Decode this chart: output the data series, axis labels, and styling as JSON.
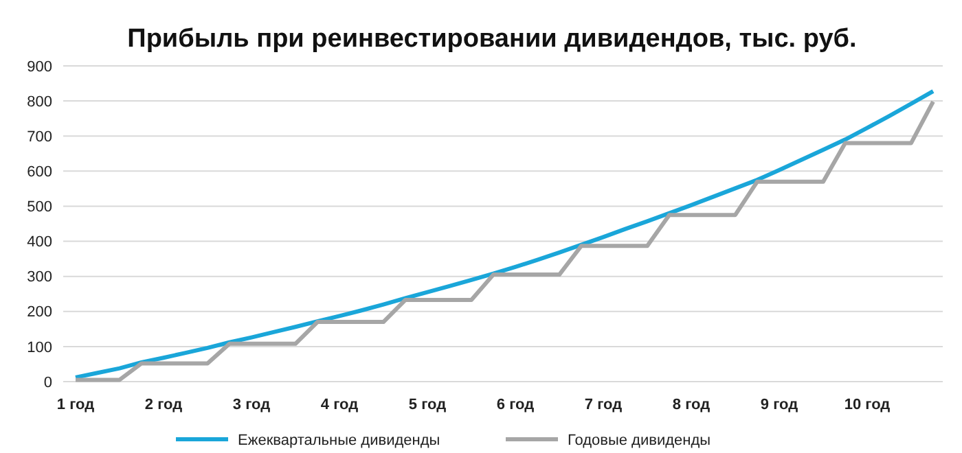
{
  "chart_data": {
    "type": "line",
    "title": "Прибыль при реинвестировании дивидендов, тыс. руб.",
    "categories": [
      "1 год",
      null,
      null,
      null,
      "2 год",
      null,
      null,
      null,
      "3 год",
      null,
      null,
      null,
      "4 год",
      null,
      null,
      null,
      "5 год",
      null,
      null,
      null,
      "6 год",
      null,
      null,
      null,
      "7 год",
      null,
      null,
      null,
      "8 год",
      null,
      null,
      null,
      "9 год",
      null,
      null,
      null,
      "10 год",
      null,
      null,
      null
    ],
    "series": [
      {
        "name": "Ежеквартальные дивиденды",
        "color": "#1aa6d9",
        "values": [
          12,
          25,
          38,
          55,
          68,
          82,
          96,
          112,
          126,
          141,
          156,
          172,
          187,
          203,
          220,
          238,
          255,
          272,
          290,
          308,
          327,
          347,
          368,
          390,
          412,
          435,
          457,
          480,
          503,
          527,
          551,
          575,
          603,
          632,
          661,
          690,
          723,
          757,
          792,
          828
        ]
      },
      {
        "name": "Годовые дивиденды",
        "color": "#a6a6a6",
        "values": [
          5,
          5,
          5,
          52,
          52,
          52,
          52,
          108,
          108,
          108,
          108,
          170,
          170,
          170,
          170,
          233,
          233,
          233,
          233,
          305,
          305,
          305,
          305,
          387,
          387,
          387,
          387,
          475,
          475,
          475,
          475,
          570,
          570,
          570,
          570,
          680,
          680,
          680,
          680,
          798
        ]
      }
    ],
    "ylim": [
      0,
      900
    ],
    "yticks": [
      0,
      100,
      200,
      300,
      400,
      500,
      600,
      700,
      800,
      900
    ],
    "grid": "y",
    "legend": "bottom",
    "marker": "none",
    "line_style": "solid"
  }
}
